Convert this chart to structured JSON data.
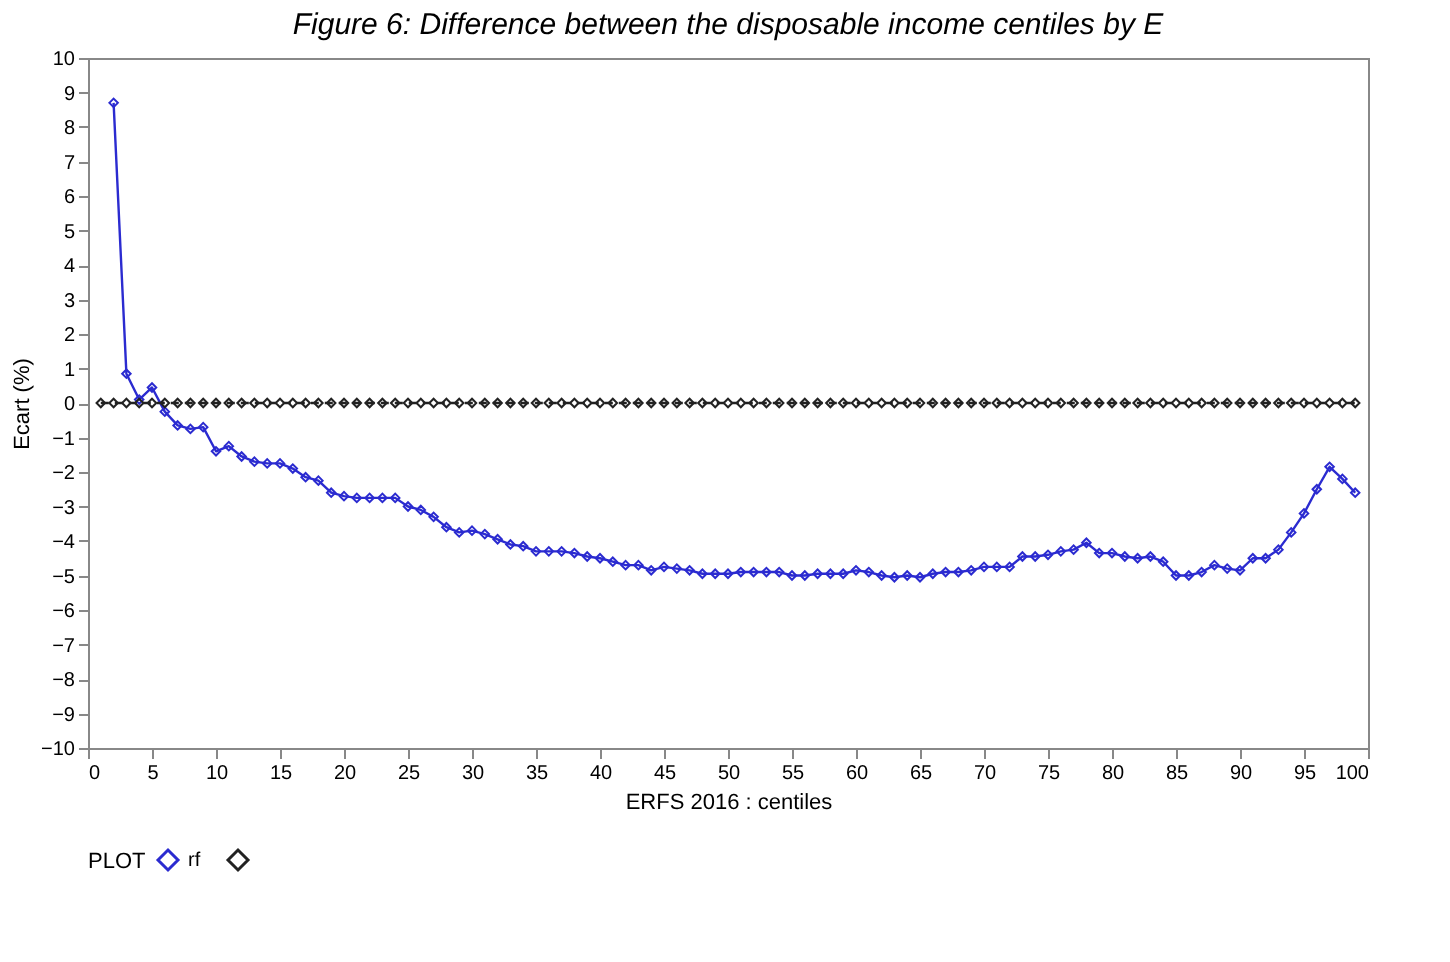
{
  "chart_data": {
    "type": "line",
    "title": "Figure 6: Difference between the disposable income centiles by E",
    "xlabel": "ERFS 2016 : centiles",
    "ylabel": "Ecart (%)",
    "legend_title": "PLOT",
    "legend": "bottom",
    "marker": "diamond",
    "grid": false,
    "xlim": [
      0,
      100
    ],
    "xticks": [
      0,
      5,
      10,
      15,
      20,
      25,
      30,
      35,
      40,
      45,
      50,
      55,
      60,
      65,
      70,
      75,
      80,
      85,
      90,
      95,
      100
    ],
    "ylim": [
      -10,
      10
    ],
    "yticks": [
      -10,
      -9,
      -8,
      -7,
      -6,
      -5,
      -4,
      -3,
      -2,
      -1,
      0,
      1,
      2,
      3,
      4,
      5,
      6,
      7,
      8,
      9,
      10
    ],
    "series": [
      {
        "name": "rf",
        "color": "#2b2bd0",
        "line_style": "solid",
        "x": [
          2,
          3,
          4,
          5,
          6,
          7,
          8,
          9,
          10,
          11,
          12,
          13,
          14,
          15,
          16,
          17,
          18,
          19,
          20,
          21,
          22,
          23,
          24,
          25,
          26,
          27,
          28,
          29,
          30,
          31,
          32,
          33,
          34,
          35,
          36,
          37,
          38,
          39,
          40,
          41,
          42,
          43,
          44,
          45,
          46,
          47,
          48,
          49,
          50,
          51,
          52,
          53,
          54,
          55,
          56,
          57,
          58,
          59,
          60,
          61,
          62,
          63,
          64,
          65,
          66,
          67,
          68,
          69,
          70,
          71,
          72,
          73,
          74,
          75,
          76,
          77,
          78,
          79,
          80,
          81,
          82,
          83,
          84,
          85,
          86,
          87,
          88,
          89,
          90,
          91,
          92,
          93,
          94,
          95,
          96,
          97,
          98,
          99
        ],
        "values": [
          8.7,
          0.85,
          0.1,
          0.45,
          -0.25,
          -0.65,
          -0.75,
          -0.7,
          -1.4,
          -1.25,
          -1.55,
          -1.7,
          -1.75,
          -1.75,
          -1.9,
          -2.15,
          -2.25,
          -2.6,
          -2.7,
          -2.75,
          -2.75,
          -2.75,
          -2.75,
          -3.0,
          -3.1,
          -3.3,
          -3.6,
          -3.75,
          -3.7,
          -3.8,
          -3.95,
          -4.1,
          -4.15,
          -4.3,
          -4.3,
          -4.3,
          -4.35,
          -4.45,
          -4.5,
          -4.6,
          -4.7,
          -4.7,
          -4.85,
          -4.75,
          -4.8,
          -4.85,
          -4.95,
          -4.95,
          -4.95,
          -4.9,
          -4.9,
          -4.9,
          -4.9,
          -5.0,
          -5.0,
          -4.95,
          -4.95,
          -4.95,
          -4.85,
          -4.9,
          -5.0,
          -5.05,
          -5.0,
          -5.05,
          -4.95,
          -4.9,
          -4.9,
          -4.85,
          -4.75,
          -4.75,
          -4.75,
          -4.45,
          -4.45,
          -4.4,
          -4.3,
          -4.25,
          -4.05,
          -4.35,
          -4.35,
          -4.45,
          -4.5,
          -4.45,
          -4.6,
          -5.0,
          -5.0,
          -4.9,
          -4.7,
          -4.8,
          -4.85,
          -4.5,
          -4.5,
          -4.25,
          -3.75,
          -3.2,
          -2.5,
          -1.85,
          -2.2,
          -2.6
        ]
      },
      {
        "color": "#222222",
        "line_style": "dashed",
        "x": [
          1,
          2,
          3,
          4,
          5,
          6,
          7,
          8,
          9,
          10,
          11,
          12,
          13,
          14,
          15,
          16,
          17,
          18,
          19,
          20,
          21,
          22,
          23,
          24,
          25,
          26,
          27,
          28,
          29,
          30,
          31,
          32,
          33,
          34,
          35,
          36,
          37,
          38,
          39,
          40,
          41,
          42,
          43,
          44,
          45,
          46,
          47,
          48,
          49,
          50,
          51,
          52,
          53,
          54,
          55,
          56,
          57,
          58,
          59,
          60,
          61,
          62,
          63,
          64,
          65,
          66,
          67,
          68,
          69,
          70,
          71,
          72,
          73,
          74,
          75,
          76,
          77,
          78,
          79,
          80,
          81,
          82,
          83,
          84,
          85,
          86,
          87,
          88,
          89,
          90,
          91,
          92,
          93,
          94,
          95,
          96,
          97,
          98,
          99
        ],
        "values": [
          0,
          0,
          0,
          0,
          0,
          0,
          0,
          0,
          0,
          0,
          0,
          0,
          0,
          0,
          0,
          0,
          0,
          0,
          0,
          0,
          0,
          0,
          0,
          0,
          0,
          0,
          0,
          0,
          0,
          0,
          0,
          0,
          0,
          0,
          0,
          0,
          0,
          0,
          0,
          0,
          0,
          0,
          0,
          0,
          0,
          0,
          0,
          0,
          0,
          0,
          0,
          0,
          0,
          0,
          0,
          0,
          0,
          0,
          0,
          0,
          0,
          0,
          0,
          0,
          0,
          0,
          0,
          0,
          0,
          0,
          0,
          0,
          0,
          0,
          0,
          0,
          0,
          0,
          0,
          0,
          0,
          0,
          0,
          0,
          0,
          0,
          0,
          0,
          0,
          0,
          0,
          0,
          0,
          0,
          0,
          0,
          0,
          0,
          0
        ]
      }
    ]
  }
}
